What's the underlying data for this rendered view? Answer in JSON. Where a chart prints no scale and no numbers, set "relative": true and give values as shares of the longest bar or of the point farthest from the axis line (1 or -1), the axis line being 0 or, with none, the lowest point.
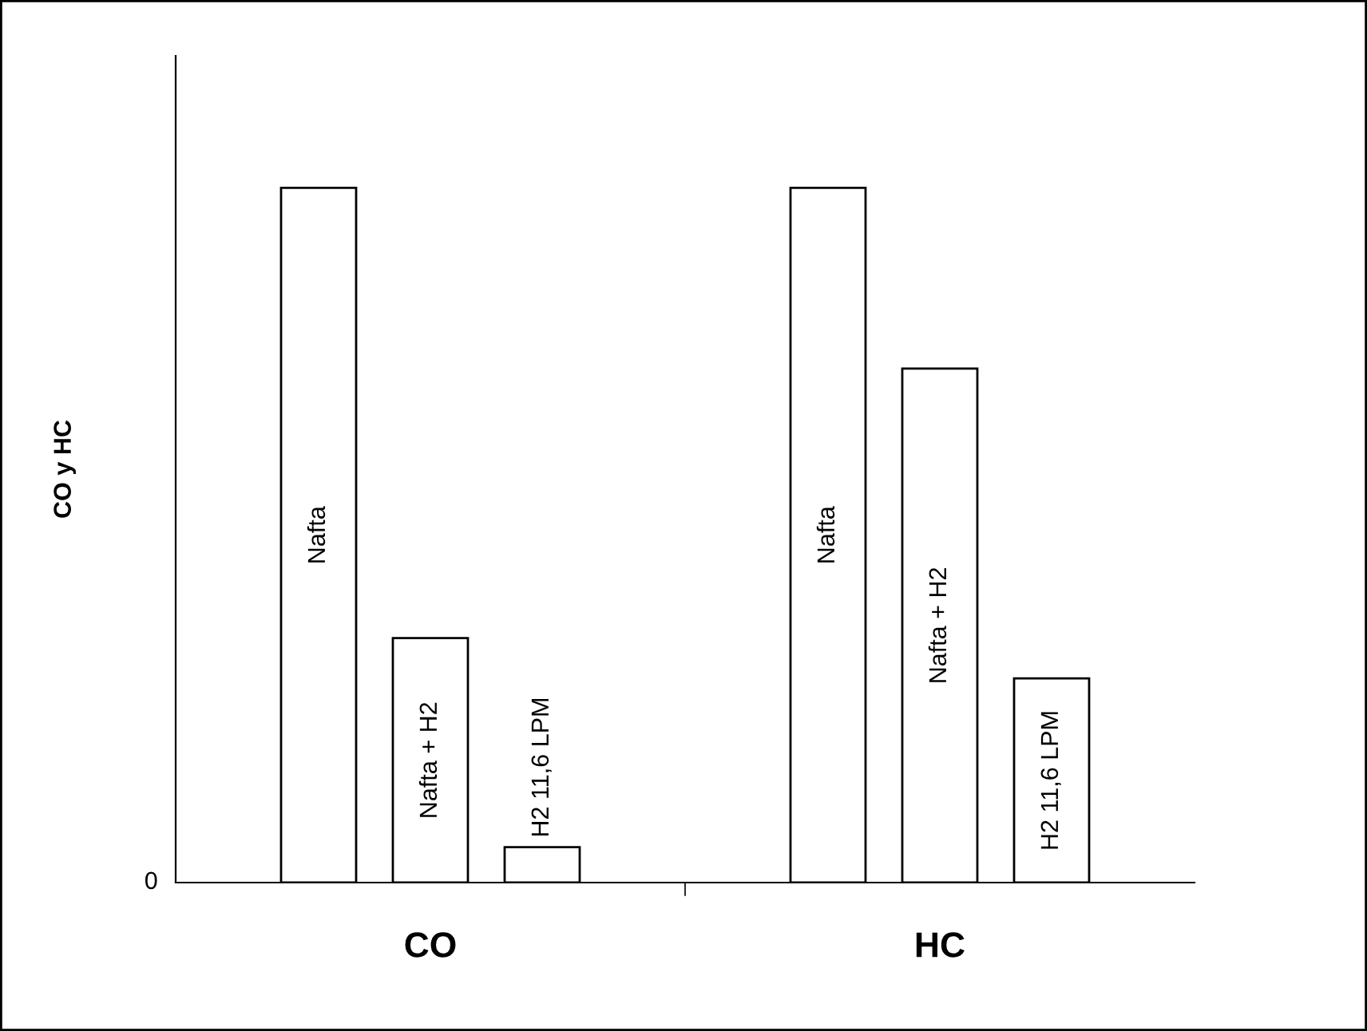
{
  "chart_data": {
    "type": "bar",
    "ylabel": "CO y HC",
    "categories": [
      "CO",
      "HC"
    ],
    "relative": true,
    "annotations": [
      "0"
    ],
    "legend": false,
    "grid": false,
    "series": [
      {
        "name": "Nafta",
        "color": "#ffffff",
        "values": [
          1,
          1
        ]
      },
      {
        "name": "Nafta + H2",
        "color": "#ffffff",
        "values": [
          0.352,
          0.74
        ]
      },
      {
        "name": "H2 11,6 LPM",
        "color": "#ffffff",
        "values": [
          0.051,
          0.294
        ]
      }
    ]
  }
}
